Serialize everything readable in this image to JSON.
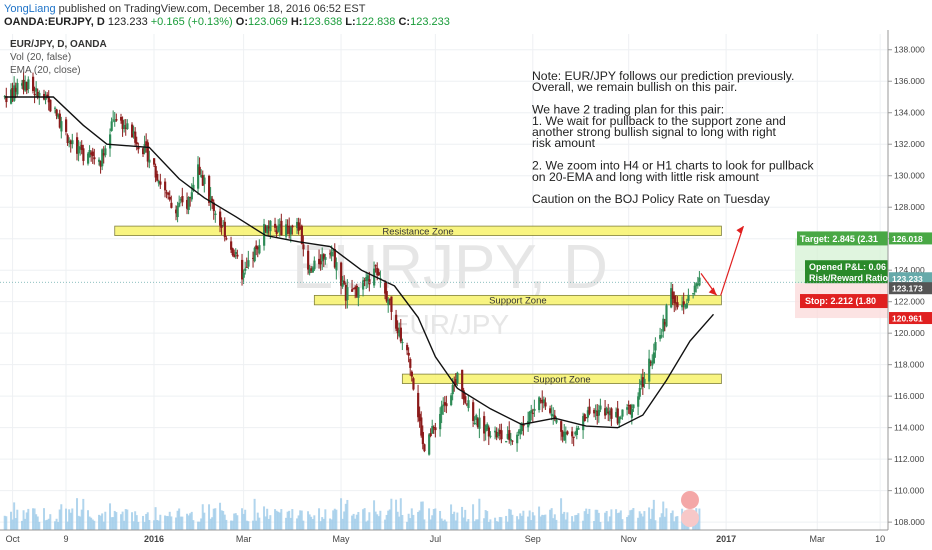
{
  "header": {
    "author": "YongLiang",
    "published": "published on TradingView.com, December 18, 2016 06:52 EST",
    "symbol": "OANDA:EURJPY, D",
    "last": "123.233",
    "change": "+0.165 (+0.13%)",
    "o_label": "O:",
    "o": "123.069",
    "h_label": "H:",
    "h": "123.638",
    "l_label": "L:",
    "l": "122.838",
    "c_label": "C:",
    "c": "123.233"
  },
  "legend": {
    "line1": "EUR/JPY, D, OANDA",
    "line2": "Vol (20, false)",
    "line3": "EMA (20, close)"
  },
  "watermark": {
    "big": "EURJPY, D",
    "small": "EUR/JPY"
  },
  "note": {
    "lines": [
      "Note: EUR/JPY follows our prediction previously.",
      "Overall, we remain bullish on this pair.",
      "",
      "We have 2 trading plan for this pair:",
      "1. We wait for pullback to the support zone and",
      "another strong bullish signal to long with right",
      "risk amount",
      "",
      "2. We zoom into H4 or H1 charts to look for pullback",
      "on 20-EMA and long with little risk amount",
      "",
      "Caution on the BOJ Policy Rate on Tuesday"
    ]
  },
  "zones": [
    {
      "label": "Resistance Zone",
      "low": 126.2,
      "high": 126.8,
      "from": "2015-12-10",
      "to": "2016-12-30"
    },
    {
      "label": "Support Zone",
      "low": 121.8,
      "high": 122.4,
      "from": "2016-04-15",
      "to": "2016-12-30"
    },
    {
      "label": "Support Zone",
      "low": 116.8,
      "high": 117.4,
      "from": "2016-06-10",
      "to": "2016-12-30"
    }
  ],
  "position": {
    "target_label": "Target: 2.845 (2.31",
    "target_price": "126.018",
    "opened_label": "Opened P&L: 0.06",
    "rr_label": "Risk/Reward Ratio:",
    "stop_label": "Stop: 2.212 (1.80",
    "stop_price": "120.961",
    "current_price": "123.233",
    "entry_price": "123.173"
  },
  "chart_data": {
    "type": "candlestick",
    "title": "EUR/JPY, D, OANDA",
    "ylim": [
      107.5,
      139
    ],
    "y_ticks": [
      108,
      110,
      112,
      114,
      116,
      118,
      120,
      122,
      124,
      126,
      128,
      130,
      132,
      134,
      136,
      138
    ],
    "x_ticks": [
      "Oct",
      "9",
      "2016",
      "Mar",
      "May",
      "Jul",
      "Sep",
      "Nov",
      "2017",
      "Mar",
      "10"
    ],
    "xlim": [
      "2015-09-28",
      "2017-04-15"
    ],
    "price_points": [
      {
        "date": "2015-10-01",
        "value": 135.0
      },
      {
        "date": "2015-10-15",
        "value": 135.8
      },
      {
        "date": "2015-11-01",
        "value": 134.2
      },
      {
        "date": "2015-11-15",
        "value": 131.5
      },
      {
        "date": "2015-12-01",
        "value": 131.0
      },
      {
        "date": "2015-12-10",
        "value": 133.8
      },
      {
        "date": "2015-12-20",
        "value": 132.8
      },
      {
        "date": "2016-01-01",
        "value": 131.2
      },
      {
        "date": "2016-01-15",
        "value": 128.0
      },
      {
        "date": "2016-01-25",
        "value": 128.2
      },
      {
        "date": "2016-02-01",
        "value": 130.5
      },
      {
        "date": "2016-02-10",
        "value": 128.2
      },
      {
        "date": "2016-02-20",
        "value": 126.0
      },
      {
        "date": "2016-03-01",
        "value": 123.5
      },
      {
        "date": "2016-03-15",
        "value": 126.8
      },
      {
        "date": "2016-03-25",
        "value": 126.5
      },
      {
        "date": "2016-04-05",
        "value": 126.8
      },
      {
        "date": "2016-04-12",
        "value": 123.8
      },
      {
        "date": "2016-04-25",
        "value": 125.5
      },
      {
        "date": "2016-05-05",
        "value": 122.5
      },
      {
        "date": "2016-05-15",
        "value": 122.8
      },
      {
        "date": "2016-05-25",
        "value": 124.0
      },
      {
        "date": "2016-06-05",
        "value": 120.8
      },
      {
        "date": "2016-06-15",
        "value": 118.0
      },
      {
        "date": "2016-06-24",
        "value": 112.5
      },
      {
        "date": "2016-07-01",
        "value": 114.2
      },
      {
        "date": "2016-07-08",
        "value": 115.8
      },
      {
        "date": "2016-07-15",
        "value": 117.2
      },
      {
        "date": "2016-07-25",
        "value": 114.5
      },
      {
        "date": "2016-08-05",
        "value": 113.8
      },
      {
        "date": "2016-08-15",
        "value": 113.2
      },
      {
        "date": "2016-08-25",
        "value": 114.0
      },
      {
        "date": "2016-09-05",
        "value": 116.0
      },
      {
        "date": "2016-09-15",
        "value": 114.5
      },
      {
        "date": "2016-09-25",
        "value": 113.2
      },
      {
        "date": "2016-10-05",
        "value": 114.8
      },
      {
        "date": "2016-10-15",
        "value": 115.2
      },
      {
        "date": "2016-10-25",
        "value": 114.5
      },
      {
        "date": "2016-11-05",
        "value": 115.5
      },
      {
        "date": "2016-11-12",
        "value": 117.5
      },
      {
        "date": "2016-11-20",
        "value": 119.5
      },
      {
        "date": "2016-11-28",
        "value": 122.5
      },
      {
        "date": "2016-12-05",
        "value": 121.5
      },
      {
        "date": "2016-12-12",
        "value": 122.8
      },
      {
        "date": "2016-12-16",
        "value": 123.233
      }
    ],
    "ema_points": [
      {
        "date": "2015-10-01",
        "value": 135.0
      },
      {
        "date": "2015-11-01",
        "value": 135.0
      },
      {
        "date": "2015-11-20",
        "value": 133.2
      },
      {
        "date": "2015-12-05",
        "value": 132.0
      },
      {
        "date": "2016-01-01",
        "value": 131.8
      },
      {
        "date": "2016-01-20",
        "value": 129.8
      },
      {
        "date": "2016-02-05",
        "value": 128.6
      },
      {
        "date": "2016-02-25",
        "value": 127.4
      },
      {
        "date": "2016-03-15",
        "value": 126.2
      },
      {
        "date": "2016-04-05",
        "value": 125.8
      },
      {
        "date": "2016-04-25",
        "value": 125.5
      },
      {
        "date": "2016-05-15",
        "value": 124.0
      },
      {
        "date": "2016-06-05",
        "value": 123.0
      },
      {
        "date": "2016-06-20",
        "value": 121.0
      },
      {
        "date": "2016-07-01",
        "value": 118.5
      },
      {
        "date": "2016-07-15",
        "value": 116.5
      },
      {
        "date": "2016-08-05",
        "value": 115.2
      },
      {
        "date": "2016-08-25",
        "value": 114.2
      },
      {
        "date": "2016-09-15",
        "value": 114.6
      },
      {
        "date": "2016-10-05",
        "value": 114.1
      },
      {
        "date": "2016-10-25",
        "value": 114.0
      },
      {
        "date": "2016-11-10",
        "value": 114.8
      },
      {
        "date": "2016-11-25",
        "value": 117.0
      },
      {
        "date": "2016-12-10",
        "value": 119.5
      },
      {
        "date": "2016-12-25",
        "value": 121.2
      }
    ],
    "projection": [
      {
        "date": "2016-12-17",
        "value": 123.8
      },
      {
        "date": "2016-12-27",
        "value": 122.4
      },
      {
        "date": "2017-01-13",
        "value": 126.8
      }
    ]
  },
  "colors": {
    "bull": "#2e8b57",
    "bear": "#8b1a1a",
    "ema": "#111111",
    "zone_fill": "#f7f36c",
    "zone_stroke": "#6b6b1e",
    "target_box": "#49a845",
    "stop_box": "#e02020",
    "projection": "#e02020",
    "volume": "#9ecbe8"
  }
}
